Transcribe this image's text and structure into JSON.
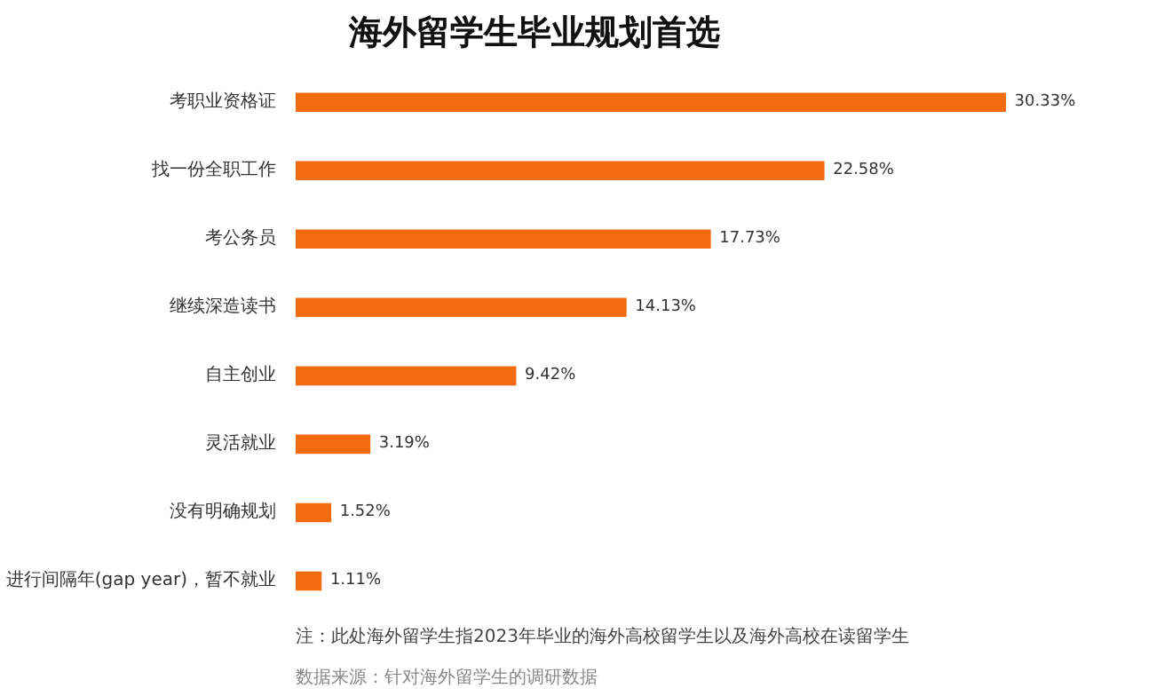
{
  "chart_data": {
    "type": "bar",
    "orientation": "horizontal",
    "title": "海外留学生毕业规划首选",
    "categories": [
      "考职业资格证",
      "找一份全职工作",
      "考公务员",
      "继续深造读书",
      "自主创业",
      "灵活就业",
      "没有明确规划",
      "进行间隔年(gap year)，暂不就业"
    ],
    "values": [
      30.33,
      22.58,
      17.73,
      14.13,
      9.42,
      3.19,
      1.52,
      1.11
    ],
    "value_labels": [
      "30.33%",
      "22.58%",
      "17.73%",
      "14.13%",
      "9.42%",
      "3.19%",
      "1.52%",
      "1.11%"
    ],
    "color": "#f26b0f",
    "annotations": [
      "注：此处海外留学生指2023年毕业的海外高校留学生以及海外高校在读留学生",
      "数据来源：针对海外留学生的调研数据"
    ],
    "grid": false
  }
}
